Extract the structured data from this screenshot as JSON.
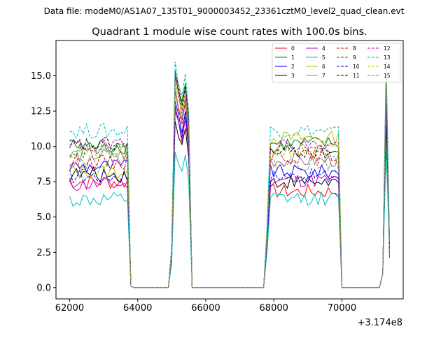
{
  "figure": {
    "suptitle": "Data file: modeM0/AS1A07_135T01_9000003452_23361cztM0_level2_quad_clean.evt",
    "title": "Quadrant 1 module wise count rates with 100.0s bins.",
    "offset_label": "+3.174e8"
  },
  "chart_data": {
    "type": "line",
    "title": "Quadrant 1 module wise count rates with 100.0s bins.",
    "xlabel": "",
    "ylabel": "",
    "x_offset": 317400000,
    "xlim": [
      61600,
      71800
    ],
    "ylim": [
      -0.8,
      17.5
    ],
    "xticks": [
      62000,
      64000,
      66000,
      68000,
      70000
    ],
    "xtick_labels": [
      "62000",
      "64000",
      "66000",
      "68000",
      "70000"
    ],
    "yticks": [
      0,
      2.5,
      5,
      7.5,
      10,
      12.5,
      15
    ],
    "ytick_labels": [
      "0.0",
      "2.5",
      "5.0",
      "7.5",
      "10.0",
      "12.5",
      "15.0"
    ],
    "legend_position": "top-right",
    "grid": false,
    "segments": [
      {
        "start": 62000,
        "n_flat": 17,
        "drop_at": 63800,
        "zero_until": 64900
      },
      {
        "start": 65100,
        "n_flat": 0,
        "peak": true,
        "drop_at": 65650,
        "zero_until": 67700
      },
      {
        "start": 67900,
        "n_flat": 20,
        "drop_at": 70000,
        "zero_until": 71100
      },
      {
        "start": 71300,
        "n_flat": 0,
        "tail": true
      }
    ],
    "series": [
      {
        "name": "0",
        "color": "#ff0000",
        "dash": "solid",
        "level": 7.5,
        "day2": 6.8,
        "peak": 12.8,
        "tail": 13.2
      },
      {
        "name": "1",
        "color": "#008000",
        "dash": "solid",
        "level": 10.0,
        "day2": 10.2,
        "peak": 15.4,
        "tail": 15.8
      },
      {
        "name": "2",
        "color": "#0000ff",
        "dash": "solid",
        "level": 8.6,
        "day2": 8.2,
        "peak": 13.2,
        "tail": 13.6
      },
      {
        "name": "3",
        "color": "#000000",
        "dash": "solid",
        "level": 8.0,
        "day2": 7.5,
        "peak": 11.8,
        "tail": 11.5
      },
      {
        "name": "4",
        "color": "#c000c0",
        "dash": "solid",
        "level": 7.3,
        "day2": 7.6,
        "peak": 12.5,
        "tail": 12.8
      },
      {
        "name": "5",
        "color": "#00bfbf",
        "dash": "solid",
        "level": 6.2,
        "day2": 6.3,
        "peak": 9.6,
        "tail": 9.8
      },
      {
        "name": "6",
        "color": "#bfbf00",
        "dash": "solid",
        "level": 8.2,
        "day2": 10.6,
        "peak": 14.5,
        "tail": 14.6
      },
      {
        "name": "7",
        "color": "#808080",
        "dash": "solid",
        "level": 9.4,
        "day2": 9.0,
        "peak": 13.8,
        "tail": 14.0
      },
      {
        "name": "8",
        "color": "#ff0000",
        "dash": "dashed",
        "level": 8.9,
        "day2": 9.3,
        "peak": 14.0,
        "tail": 14.2
      },
      {
        "name": "9",
        "color": "#008000",
        "dash": "dashed",
        "level": 9.7,
        "day2": 9.8,
        "peak": 14.9,
        "tail": 15.1
      },
      {
        "name": "10",
        "color": "#0000ff",
        "dash": "dashed",
        "level": 7.9,
        "day2": 7.9,
        "peak": 12.9,
        "tail": 13.1
      },
      {
        "name": "11",
        "color": "#000000",
        "dash": "dashed",
        "level": 10.1,
        "day2": 9.6,
        "peak": 15.2,
        "tail": 15.0
      },
      {
        "name": "12",
        "color": "#c000c0",
        "dash": "dashed",
        "level": 10.0,
        "day2": 10.1,
        "peak": 15.0,
        "tail": 15.4
      },
      {
        "name": "13",
        "color": "#00bfbf",
        "dash": "dashed",
        "level": 11.1,
        "day2": 11.1,
        "peak": 16.0,
        "tail": 16.4
      },
      {
        "name": "14",
        "color": "#bfbf00",
        "dash": "dashed",
        "level": 9.5,
        "day2": 9.7,
        "peak": 14.4,
        "tail": 14.8
      },
      {
        "name": "15",
        "color": "#808080",
        "dash": "dashed",
        "level": 9.0,
        "day2": 8.8,
        "peak": 14.1,
        "tail": 14.3
      }
    ]
  }
}
